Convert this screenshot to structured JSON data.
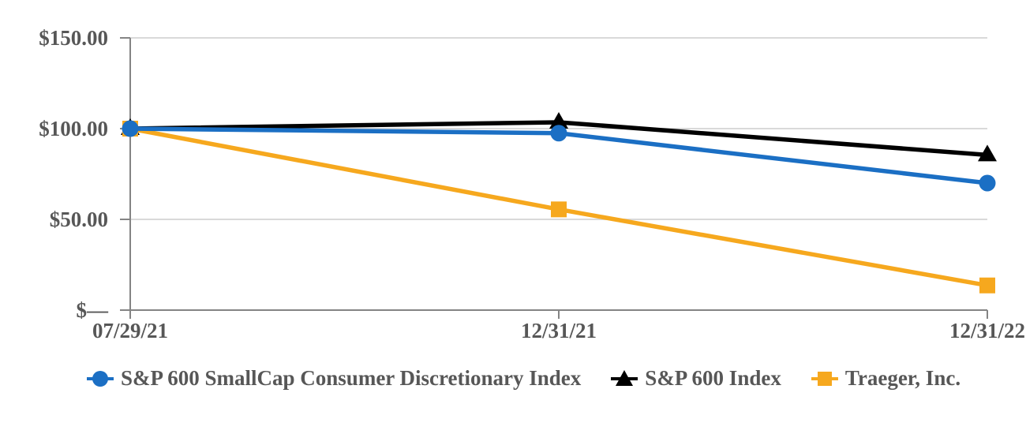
{
  "chart_data": {
    "type": "line",
    "title": "",
    "categories": [
      "07/29/21",
      "12/31/21",
      "12/31/22"
    ],
    "series": [
      {
        "name": "S&P 600 SmallCap Consumer Discretionary Index",
        "values": [
          100,
          97.5,
          70
        ],
        "color": "#1B6FC4",
        "marker": "circle"
      },
      {
        "name": "S&P 600 Index",
        "values": [
          100,
          103.5,
          85.5
        ],
        "color": "#000000",
        "marker": "triangle"
      },
      {
        "name": "Traeger, Inc.",
        "values": [
          100,
          55.5,
          13.6
        ],
        "color": "#F6A81E",
        "marker": "square"
      }
    ],
    "y_ticks": [
      {
        "value": 150,
        "label": "$150.00"
      },
      {
        "value": 100,
        "label": "$100.00"
      },
      {
        "value": 50,
        "label": "$50.00"
      },
      {
        "value": 0,
        "label": "$—"
      }
    ],
    "ylim": [
      0,
      150
    ],
    "xlabel": "",
    "ylabel": "",
    "grid": true,
    "legend_position": "bottom",
    "colors": {
      "axis": "#848484",
      "grid": "#D9D9D9",
      "label": "#575757",
      "background": "#FFFFFF"
    }
  }
}
